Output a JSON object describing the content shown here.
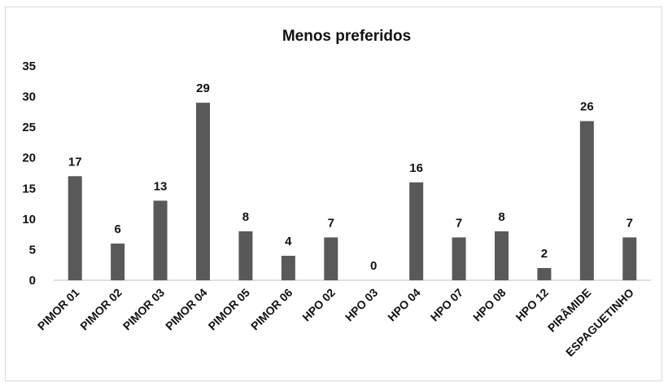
{
  "chart_data": {
    "type": "bar",
    "title": "Menos preferidos",
    "categories": [
      "PIMOR 01",
      "PIMOR 02",
      "PIMOR 03",
      "PIMOR 04",
      "PIMOR 05",
      "PIMOR 06",
      "HPO 02",
      "HPO 03",
      "HPO 04",
      "HPO 07",
      "HPO 08",
      "HPO 12",
      "PIRÂMIDE",
      "ESPAGUETINHO"
    ],
    "values": [
      17,
      6,
      13,
      29,
      8,
      4,
      7,
      0,
      16,
      7,
      8,
      2,
      26,
      7
    ],
    "ylim": [
      0,
      35
    ],
    "yticks": [
      0,
      5,
      10,
      15,
      20,
      25,
      30,
      35
    ],
    "grid": false,
    "legend": "none",
    "bar_color": "#595959",
    "axis_color": "#bfbfbf"
  }
}
